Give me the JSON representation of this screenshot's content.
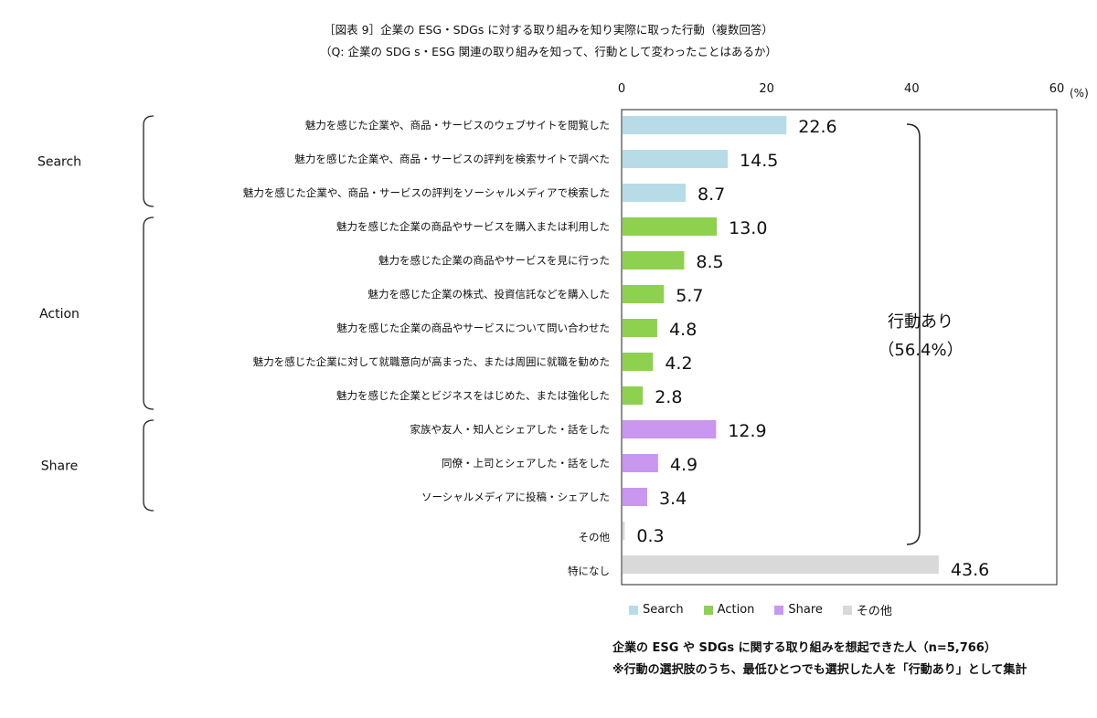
{
  "chart_data": {
    "type": "bar",
    "orientation": "horizontal",
    "title": "［図表 9］企業の ESG・SDGs に対する取り組みを知り実際に取った行動（複数回答）",
    "subtitle": "（Q: 企業の SDG s・ESG 関連の取り組みを知って、行動として変わったことはあるか）",
    "unit": "(%)",
    "xlim": [
      0,
      60
    ],
    "x_ticks": [
      0,
      20,
      40,
      60
    ],
    "categories": [
      "魅力を感じた企業や、商品・サービスのウェブサイトを閲覧した",
      "魅力を感じた企業や、商品・サービスの評判を検索サイトで調べた",
      "魅力を感じた企業や、商品・サービスの評判をソーシャルメディアで検索した",
      "魅力を感じた企業の商品やサービスを購入または利用した",
      "魅力を感じた企業の商品やサービスを見に行った",
      "魅力を感じた企業の株式、投資信託などを購入した",
      "魅力を感じた企業の商品やサービスについて問い合わせた",
      "魅力を感じた企業に対して就職意向が高まった、または周囲に就職を勧めた",
      "魅力を感じた企業とビジネスをはじめた、または強化した",
      "家族や友人・知人とシェアした・話をした",
      "同僚・上司とシェアした・話をした",
      "ソーシャルメディアに投稿・シェアした",
      "その他",
      "特になし"
    ],
    "values": [
      22.6,
      14.5,
      8.7,
      13.0,
      8.5,
      5.7,
      4.8,
      4.2,
      2.8,
      12.9,
      4.9,
      3.4,
      0.3,
      43.6
    ],
    "value_labels": [
      "22.6",
      "14.5",
      "8.7",
      "13.0",
      "8.5",
      "5.7",
      "4.8",
      "4.2",
      "2.8",
      "12.9",
      "4.9",
      "3.4",
      "0.3",
      "43.6"
    ],
    "bar_groups": [
      "Search",
      "Search",
      "Search",
      "Action",
      "Action",
      "Action",
      "Action",
      "Action",
      "Action",
      "Share",
      "Share",
      "Share",
      "その他",
      "その他"
    ],
    "groups": [
      {
        "name": "Search",
        "start": 0,
        "end": 2
      },
      {
        "name": "Action",
        "start": 3,
        "end": 8
      },
      {
        "name": "Share",
        "start": 9,
        "end": 11
      }
    ],
    "legend": [
      {
        "name": "Search",
        "color": "#b7dce8"
      },
      {
        "name": "Action",
        "color": "#8ed14f"
      },
      {
        "name": "Share",
        "color": "#c996f0"
      },
      {
        "name": "その他",
        "color": "#d9d9d9"
      }
    ],
    "bracket_label_line1": "行動あり",
    "bracket_label_line2": "（56.4%）",
    "grid": false,
    "legend_position": "bottom"
  },
  "notes": [
    "企業の ESG や SDGs に関する取り組みを想起できた人（n=5,766）",
    "※行動の選択肢のうち、最低ひとつでも選択した人を「行動あり」として集計"
  ]
}
